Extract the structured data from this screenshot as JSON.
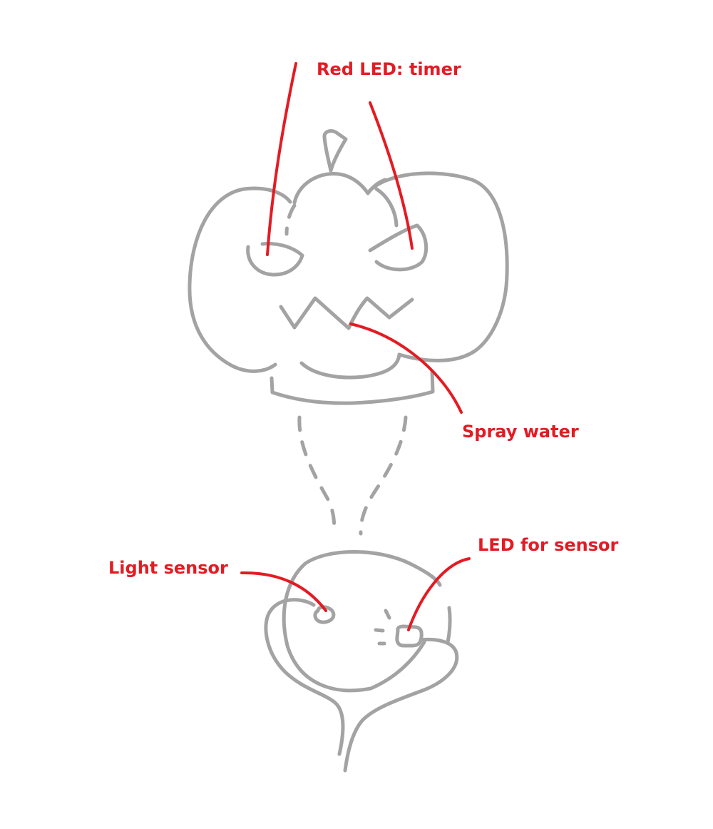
{
  "colors": {
    "sketch": "#a3a3a3",
    "annotation": "#e31b23",
    "background": "#ffffff"
  },
  "labels": {
    "red_led_timer": "Red LED: timer",
    "spray_water": "Spray water",
    "light_sensor": "Light sensor",
    "led_for_sensor": "LED for sensor"
  }
}
